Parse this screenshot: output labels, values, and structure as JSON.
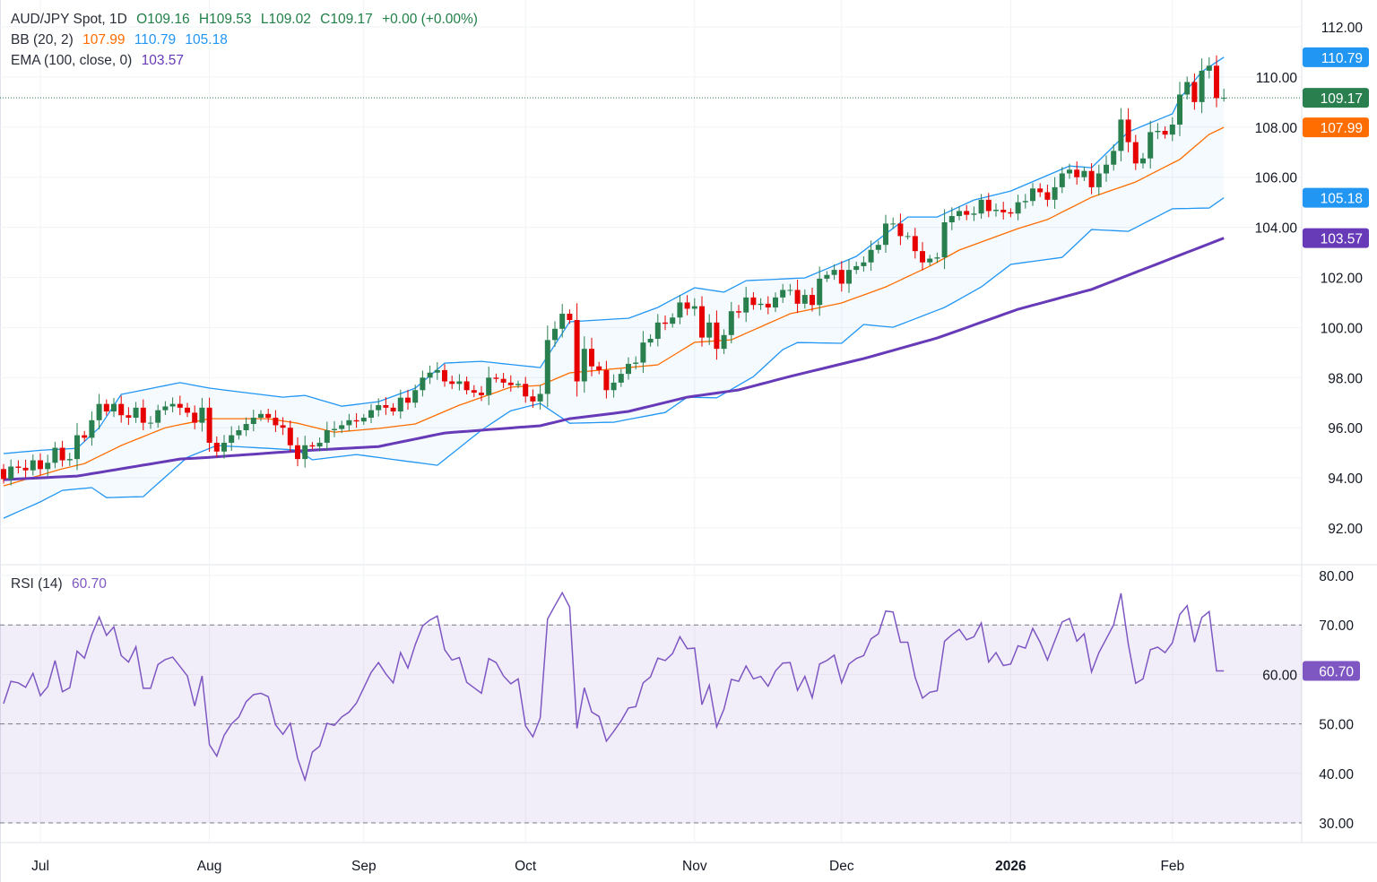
{
  "chart_data": {
    "type": "candlestick",
    "symbol": "AUD/JPY Spot",
    "interval": "1D",
    "legend": {
      "title": "AUD/JPY Spot, 1D",
      "open": "O109.16",
      "high": "H109.53",
      "low": "L109.02",
      "close": "C109.17",
      "change": "+0.00 (+0.00%)",
      "bb_label": "BB (20, 2)",
      "bb_mid": "107.99",
      "bb_upper": "110.79",
      "bb_lower": "105.18",
      "ema_label": "EMA (100, close, 0)",
      "ema_value": "103.57",
      "rsi_label": "RSI (14)",
      "rsi_value": "60.70"
    },
    "first_open": 94.35,
    "last_candle": {
      "o": 109.16,
      "h": 109.53,
      "l": 109.02,
      "c": 109.17
    },
    "closes": [
      93.95,
      94.45,
      94.4,
      94.3,
      94.7,
      94.35,
      94.6,
      95.2,
      94.7,
      94.75,
      95.7,
      95.6,
      96.3,
      96.95,
      96.65,
      96.95,
      96.5,
      96.4,
      96.8,
      96.2,
      96.2,
      96.7,
      96.85,
      96.95,
      96.8,
      96.6,
      96.2,
      96.8,
      95.4,
      95.05,
      95.4,
      95.7,
      95.9,
      96.15,
      96.4,
      96.55,
      96.4,
      96.1,
      96.0,
      95.3,
      94.75,
      95.3,
      95.25,
      95.4,
      95.9,
      95.95,
      96.1,
      96.3,
      96.25,
      96.4,
      96.7,
      96.9,
      96.8,
      96.65,
      97.2,
      97.0,
      97.5,
      98.0,
      98.2,
      98.3,
      97.85,
      97.75,
      97.85,
      97.5,
      97.4,
      97.3,
      98.0,
      97.95,
      97.8,
      97.7,
      97.75,
      97.25,
      97.05,
      97.35,
      99.5,
      99.95,
      100.55,
      100.3,
      97.85,
      99.15,
      98.45,
      98.3,
      97.5,
      97.8,
      98.15,
      98.55,
      98.6,
      99.4,
      99.55,
      100.2,
      100.15,
      100.4,
      101.0,
      100.75,
      100.85,
      99.6,
      100.2,
      99.15,
      99.7,
      100.65,
      100.6,
      101.2,
      100.9,
      100.95,
      100.8,
      101.2,
      101.5,
      101.5,
      100.95,
      101.3,
      100.9,
      101.95,
      102.1,
      102.3,
      101.75,
      102.3,
      102.45,
      102.6,
      103.1,
      103.3,
      104.15,
      104.15,
      103.65,
      103.65,
      103.05,
      102.6,
      102.75,
      102.8,
      104.2,
      104.45,
      104.65,
      104.5,
      104.55,
      105.1,
      104.65,
      104.7,
      104.6,
      104.55,
      105.0,
      105.05,
      105.55,
      105.4,
      105.1,
      105.6,
      106.15,
      106.3,
      106.0,
      106.25,
      105.6,
      106.15,
      106.5,
      107.05,
      108.3,
      107.4,
      106.55,
      106.75,
      107.8,
      107.85,
      107.7,
      108.1,
      109.3,
      109.8,
      109.0,
      110.25,
      110.45,
      109.16,
      109.17
    ],
    "bb_upper": [
      [
        0,
        94.97
      ],
      [
        5,
        95.1
      ],
      [
        10,
        95.18
      ],
      [
        13,
        96.0
      ],
      [
        16,
        97.33
      ],
      [
        24,
        97.8
      ],
      [
        28,
        97.58
      ],
      [
        38,
        97.22
      ],
      [
        41,
        97.29
      ],
      [
        46,
        96.86
      ],
      [
        51,
        97.04
      ],
      [
        56,
        97.58
      ],
      [
        60,
        98.58
      ],
      [
        65,
        98.65
      ],
      [
        73,
        98.4
      ],
      [
        77,
        100.23
      ],
      [
        85,
        100.37
      ],
      [
        89,
        100.8
      ],
      [
        94,
        101.59
      ],
      [
        98,
        101.41
      ],
      [
        101,
        101.87
      ],
      [
        109,
        101.98
      ],
      [
        116,
        102.84
      ],
      [
        123,
        104.41
      ],
      [
        127,
        104.41
      ],
      [
        132,
        105.09
      ],
      [
        137,
        105.45
      ],
      [
        145,
        106.45
      ],
      [
        148,
        106.38
      ],
      [
        153,
        107.81
      ],
      [
        159,
        108.53
      ],
      [
        160,
        109.14
      ],
      [
        163,
        110.21
      ],
      [
        166,
        110.79
      ]
    ],
    "bb_mid": [
      [
        0,
        93.68
      ],
      [
        8,
        94.36
      ],
      [
        11,
        94.57
      ],
      [
        16,
        95.29
      ],
      [
        22,
        96.0
      ],
      [
        28,
        96.36
      ],
      [
        36,
        96.36
      ],
      [
        40,
        96.18
      ],
      [
        45,
        95.82
      ],
      [
        51,
        95.97
      ],
      [
        56,
        96.15
      ],
      [
        62,
        96.9
      ],
      [
        69,
        97.62
      ],
      [
        73,
        97.69
      ],
      [
        77,
        98.19
      ],
      [
        89,
        98.51
      ],
      [
        94,
        99.41
      ],
      [
        99,
        99.51
      ],
      [
        107,
        100.55
      ],
      [
        114,
        100.98
      ],
      [
        120,
        101.62
      ],
      [
        126,
        102.45
      ],
      [
        130,
        103.09
      ],
      [
        138,
        103.95
      ],
      [
        142,
        104.31
      ],
      [
        148,
        105.2
      ],
      [
        154,
        105.81
      ],
      [
        160,
        106.71
      ],
      [
        164,
        107.71
      ],
      [
        166,
        107.99
      ]
    ],
    "bb_lower": [
      [
        0,
        92.39
      ],
      [
        5,
        93.04
      ],
      [
        8,
        93.5
      ],
      [
        12,
        93.61
      ],
      [
        14,
        93.21
      ],
      [
        19,
        93.25
      ],
      [
        25,
        94.82
      ],
      [
        29,
        95.29
      ],
      [
        40,
        95.11
      ],
      [
        42,
        94.72
      ],
      [
        48,
        94.93
      ],
      [
        59,
        94.5
      ],
      [
        65,
        95.9
      ],
      [
        69,
        96.68
      ],
      [
        73,
        96.97
      ],
      [
        77,
        96.18
      ],
      [
        83,
        96.22
      ],
      [
        90,
        96.61
      ],
      [
        93,
        97.22
      ],
      [
        97,
        97.19
      ],
      [
        102,
        98.04
      ],
      [
        106,
        99.12
      ],
      [
        108,
        99.4
      ],
      [
        114,
        99.37
      ],
      [
        117,
        100.12
      ],
      [
        121,
        100.01
      ],
      [
        128,
        100.8
      ],
      [
        133,
        101.62
      ],
      [
        137,
        102.52
      ],
      [
        144,
        102.8
      ],
      [
        148,
        103.91
      ],
      [
        153,
        103.84
      ],
      [
        159,
        104.74
      ],
      [
        164,
        104.77
      ],
      [
        166,
        105.18
      ]
    ],
    "ema100": [
      [
        0,
        93.93
      ],
      [
        10,
        94.07
      ],
      [
        24,
        94.75
      ],
      [
        28,
        94.82
      ],
      [
        40,
        95.07
      ],
      [
        51,
        95.25
      ],
      [
        60,
        95.79
      ],
      [
        73,
        96.08
      ],
      [
        77,
        96.36
      ],
      [
        85,
        96.65
      ],
      [
        93,
        97.22
      ],
      [
        100,
        97.51
      ],
      [
        107,
        98.05
      ],
      [
        117,
        98.76
      ],
      [
        127,
        99.58
      ],
      [
        138,
        100.73
      ],
      [
        148,
        101.52
      ],
      [
        166,
        103.57
      ]
    ],
    "rsi": [
      54.1,
      58.6,
      58.3,
      57.4,
      60.2,
      55.7,
      57.5,
      62.8,
      56.5,
      57.3,
      64.7,
      63.3,
      68.0,
      71.6,
      67.9,
      69.6,
      63.8,
      62.5,
      65.6,
      57.2,
      57.2,
      62.0,
      63.0,
      63.5,
      61.6,
      59.7,
      53.6,
      59.7,
      45.8,
      43.5,
      47.7,
      50.0,
      51.4,
      54.5,
      55.9,
      56.2,
      55.5,
      49.8,
      47.9,
      50.1,
      43.0,
      38.7,
      44.3,
      45.5,
      50.1,
      49.7,
      51.4,
      52.4,
      54.2,
      57.3,
      60.4,
      62.4,
      60.1,
      58.3,
      64.4,
      61.3,
      66.0,
      69.8,
      71.0,
      71.8,
      65.0,
      62.9,
      63.4,
      58.4,
      57.3,
      56.2,
      63.2,
      62.4,
      59.7,
      58.1,
      59.1,
      49.6,
      47.4,
      51.2,
      71.2,
      73.9,
      76.5,
      73.6,
      49.1,
      57.3,
      52.4,
      51.5,
      46.5,
      48.5,
      50.6,
      53.2,
      53.5,
      58.3,
      59.5,
      63.3,
      62.8,
      64.2,
      67.6,
      65.2,
      65.3,
      53.9,
      57.8,
      49.4,
      53.0,
      59.0,
      58.6,
      61.7,
      59.1,
      59.6,
      57.6,
      60.7,
      62.3,
      62.4,
      56.8,
      59.6,
      55.3,
      62.1,
      62.8,
      63.9,
      58.3,
      62.1,
      63.2,
      63.8,
      67.2,
      68.2,
      72.8,
      72.6,
      66.5,
      66.5,
      59.4,
      55.2,
      56.4,
      56.7,
      66.7,
      68.0,
      69.1,
      67.0,
      67.6,
      70.4,
      62.5,
      64.4,
      61.8,
      62.1,
      65.8,
      65.3,
      69.3,
      66.5,
      62.9,
      66.8,
      70.6,
      71.3,
      66.7,
      68.2,
      60.5,
      64.4,
      67.2,
      70.0,
      76.4,
      66.1,
      58.2,
      59.1,
      65.0,
      65.5,
      64.4,
      66.4,
      72.1,
      73.9,
      66.5,
      71.5,
      72.7,
      60.7,
      60.7
    ],
    "price_axis": {
      "range": [
        92,
        112
      ],
      "ticks": [
        "112.00",
        "110.00",
        "108.00",
        "106.00",
        "104.00",
        "102.00",
        "100.00",
        "98.00",
        "96.00",
        "94.00",
        "92.00"
      ]
    },
    "rsi_axis": {
      "range": [
        30,
        80
      ],
      "ticks": [
        "80.00",
        "70.00",
        "60.00",
        "50.00",
        "40.00",
        "30.00"
      ],
      "band": [
        30,
        70
      ],
      "levels": [
        70,
        50,
        30
      ]
    },
    "price_badges": [
      {
        "label": "110.79",
        "value": 110.79,
        "color": "#2196f3"
      },
      {
        "label": "109.17",
        "value": 109.17,
        "color": "#2a7f4f"
      },
      {
        "label": "107.99",
        "value": 107.99,
        "color": "#ff6d00"
      },
      {
        "label": "105.18",
        "value": 105.18,
        "color": "#2196f3"
      },
      {
        "label": "103.57",
        "value": 103.57,
        "color": "#673ab7"
      }
    ],
    "rsi_badge": {
      "label": "60.70",
      "value": 60.7,
      "color": "#7e57c2"
    },
    "time_axis": [
      {
        "label": "Jul",
        "bar": 5,
        "bold": false
      },
      {
        "label": "Aug",
        "bar": 28,
        "bold": false
      },
      {
        "label": "Sep",
        "bar": 49,
        "bold": false
      },
      {
        "label": "Oct",
        "bar": 71,
        "bold": false
      },
      {
        "label": "Nov",
        "bar": 94,
        "bold": false
      },
      {
        "label": "Dec",
        "bar": 114,
        "bold": false
      },
      {
        "label": "2026",
        "bar": 137,
        "bold": true
      },
      {
        "label": "Feb",
        "bar": 159,
        "bold": false
      }
    ],
    "colors": {
      "up": "#2a7f4f",
      "down": "#e60000",
      "bb_band": "#2196f3",
      "bb_mid": "#ff6d00",
      "ema": "#673ab7",
      "rsi": "#7e57c2",
      "value_green": "#22804a"
    }
  }
}
